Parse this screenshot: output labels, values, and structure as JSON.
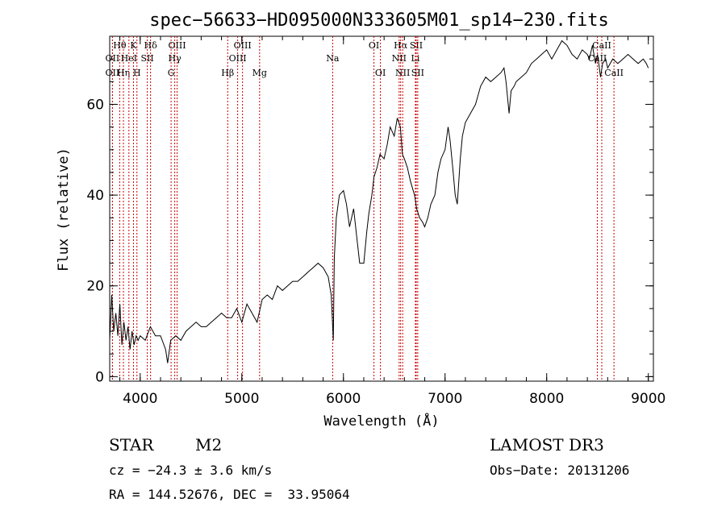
{
  "chart_data": {
    "type": "line",
    "title": "spec−56633−HD095000N333605M01_sp14−230.fits",
    "xlabel": "Wavelength (Å)",
    "ylabel": "Flux (relative)",
    "xlim": [
      3700,
      9050
    ],
    "ylim": [
      -1,
      75
    ],
    "xticks": [
      4000,
      5000,
      6000,
      7000,
      8000,
      9000
    ],
    "yticks": [
      0,
      20,
      40,
      60
    ],
    "grid": false,
    "series": [
      {
        "x": [
          3700,
          3720,
          3740,
          3760,
          3780,
          3800,
          3820,
          3840,
          3860,
          3880,
          3900,
          3920,
          3940,
          3960,
          3980,
          4000,
          4050,
          4100,
          4150,
          4200,
          4250,
          4270,
          4300,
          4350,
          4400,
          4450,
          4500,
          4550,
          4600,
          4650,
          4700,
          4750,
          4800,
          4850,
          4900,
          4950,
          5000,
          5050,
          5100,
          5150,
          5200,
          5250,
          5300,
          5350,
          5400,
          5450,
          5500,
          5550,
          5600,
          5650,
          5700,
          5750,
          5800,
          5850,
          5880,
          5900,
          5910,
          5930,
          5960,
          6000,
          6030,
          6060,
          6100,
          6130,
          6160,
          6200,
          6230,
          6250,
          6280,
          6300,
          6330,
          6360,
          6400,
          6430,
          6460,
          6500,
          6530,
          6560,
          6570,
          6580,
          6600,
          6630,
          6660,
          6700,
          6720,
          6750,
          6780,
          6800,
          6830,
          6860,
          6900,
          6930,
          6960,
          7000,
          7030,
          7050,
          7080,
          7100,
          7120,
          7150,
          7170,
          7200,
          7250,
          7300,
          7350,
          7400,
          7450,
          7500,
          7550,
          7580,
          7600,
          7630,
          7650,
          7680,
          7700,
          7750,
          7800,
          7850,
          7900,
          7950,
          8000,
          8050,
          8100,
          8150,
          8200,
          8250,
          8300,
          8350,
          8400,
          8420,
          8450,
          8480,
          8500,
          8530,
          8550,
          8580,
          8600,
          8650,
          8700,
          8750,
          8800,
          8850,
          8900,
          8950,
          8980,
          9000
        ],
        "y": [
          8,
          18,
          10,
          14,
          9,
          16,
          7,
          12,
          8,
          11,
          6,
          10,
          7,
          9,
          8,
          9,
          8,
          11,
          9,
          9,
          6,
          3,
          8,
          9,
          8,
          10,
          11,
          12,
          11,
          11,
          12,
          13,
          14,
          13,
          13,
          15,
          12,
          16,
          14,
          12,
          17,
          18,
          17,
          20,
          19,
          20,
          21,
          21,
          22,
          23,
          24,
          25,
          24,
          22,
          18,
          8,
          26,
          35,
          40,
          41,
          38,
          33,
          37,
          31,
          25,
          25,
          32,
          36,
          40,
          44,
          46,
          49,
          48,
          51,
          55,
          53,
          57,
          55,
          52,
          49,
          48,
          46,
          43,
          40,
          37,
          35,
          34,
          33,
          35,
          38,
          40,
          45,
          48,
          50,
          55,
          52,
          45,
          40,
          38,
          48,
          53,
          56,
          58,
          60,
          64,
          66,
          65,
          66,
          67,
          68,
          65,
          58,
          63,
          64,
          65,
          66,
          67,
          69,
          70,
          71,
          72,
          70,
          72,
          74,
          73,
          71,
          70,
          72,
          71,
          70,
          73,
          69,
          71,
          66,
          69,
          70,
          68,
          70,
          69,
          70,
          71,
          70,
          69,
          70,
          69,
          68
        ]
      }
    ],
    "emission_lines": [
      {
        "label": "Hθ",
        "wl": 3798,
        "row": 1
      },
      {
        "label": "OII",
        "wl": 3727,
        "row": 2
      },
      {
        "label": "OII",
        "wl": 3727,
        "row": 3
      },
      {
        "label": "Hη",
        "wl": 3835,
        "row": 3
      },
      {
        "label": "K",
        "wl": 3934,
        "row": 1
      },
      {
        "label": "HeI",
        "wl": 3889,
        "row": 2
      },
      {
        "label": "H",
        "wl": 3968,
        "row": 3
      },
      {
        "label": "Hδ",
        "wl": 4102,
        "row": 1
      },
      {
        "label": "SII",
        "wl": 4070,
        "row": 2
      },
      {
        "label": "OIII",
        "wl": 4363,
        "row": 1
      },
      {
        "label": "Hγ",
        "wl": 4340,
        "row": 2
      },
      {
        "label": "G",
        "wl": 4304,
        "row": 3
      },
      {
        "label": "Hβ",
        "wl": 4861,
        "row": 3
      },
      {
        "label": "OIII",
        "wl": 5007,
        "row": 1
      },
      {
        "label": "OIII",
        "wl": 4959,
        "row": 2
      },
      {
        "label": "Mg",
        "wl": 5175,
        "row": 3
      },
      {
        "label": "Na",
        "wl": 5894,
        "row": 2
      },
      {
        "label": "OI",
        "wl": 6300,
        "row": 1
      },
      {
        "label": "OI",
        "wl": 6364,
        "row": 3
      },
      {
        "label": "Hα",
        "wl": 6563,
        "row": 1
      },
      {
        "label": "NII",
        "wl": 6548,
        "row": 2
      },
      {
        "label": "NII",
        "wl": 6583,
        "row": 3
      },
      {
        "label": "SII",
        "wl": 6716,
        "row": 1
      },
      {
        "label": "Li",
        "wl": 6708,
        "row": 2
      },
      {
        "label": "SII",
        "wl": 6731,
        "row": 3
      },
      {
        "label": "CaII",
        "wl": 8542,
        "row": 1
      },
      {
        "label": "CaII",
        "wl": 8498,
        "row": 2
      },
      {
        "label": "CaII",
        "wl": 8662,
        "row": 3
      }
    ]
  },
  "footer": {
    "obj_class": "STAR",
    "subclass": "M2",
    "survey": "LAMOST DR3",
    "cz": "cz = −24.3 ± 3.6 km/s",
    "obs_date": "Obs−Date: 20131206",
    "coords": "RA = 144.52676, DEC =  33.95064"
  },
  "colors": {
    "line_marker": "#cc0000",
    "spectrum": "#000000"
  }
}
